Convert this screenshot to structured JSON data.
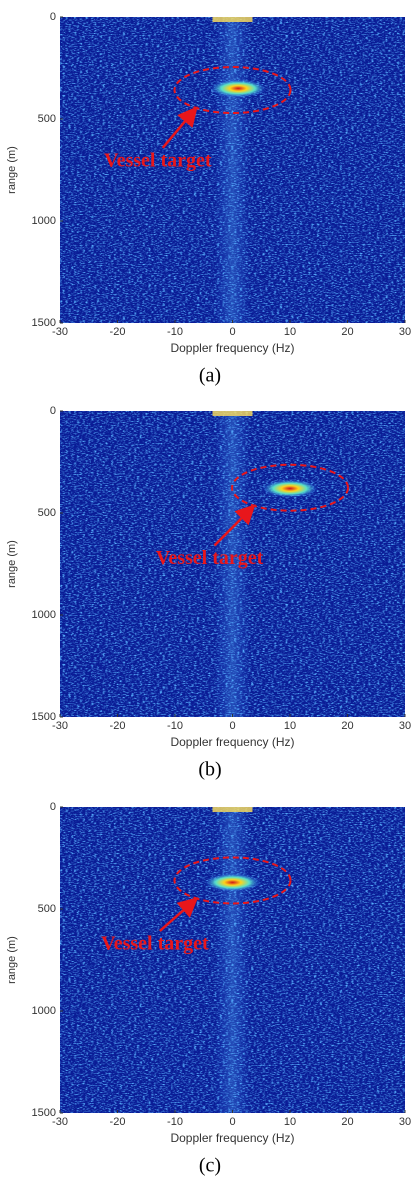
{
  "chart_data": [
    {
      "type": "heatmap",
      "caption": "(a)",
      "xlabel": "Doppler frequency (Hz)",
      "ylabel": "range (m)",
      "xlim": [
        -30,
        30
      ],
      "ylim": [
        0,
        1500
      ],
      "xticks": [
        -30,
        -20,
        -10,
        0,
        10,
        20,
        30
      ],
      "yticks": [
        0,
        500,
        1000,
        1500
      ],
      "target": {
        "x": 1,
        "y": 350
      },
      "annotation": {
        "text": "Vessel target",
        "x": -13,
        "y": 710,
        "ellipse_x": 0,
        "ellipse_y": 358
      }
    },
    {
      "type": "heatmap",
      "caption": "(b)",
      "xlabel": "Doppler frequency (Hz)",
      "ylabel": "range (m)",
      "xlim": [
        -30,
        30
      ],
      "ylim": [
        0,
        1500
      ],
      "xticks": [
        -30,
        -20,
        -10,
        0,
        10,
        20,
        30
      ],
      "yticks": [
        0,
        500,
        1000,
        1500
      ],
      "target": {
        "x": 10,
        "y": 380
      },
      "annotation": {
        "text": "Vessel target",
        "x": -4,
        "y": 728,
        "ellipse_x": 10,
        "ellipse_y": 376
      }
    },
    {
      "type": "heatmap",
      "caption": "(c)",
      "xlabel": "Doppler frequency (Hz)",
      "ylabel": "range (m)",
      "xlim": [
        -30,
        30
      ],
      "ylim": [
        0,
        1500
      ],
      "xticks": [
        -30,
        -20,
        -10,
        0,
        10,
        20,
        30
      ],
      "yticks": [
        0,
        500,
        1000,
        1500
      ],
      "target": {
        "x": 0,
        "y": 370
      },
      "annotation": {
        "text": "Vessel target",
        "x": -13.5,
        "y": 676,
        "ellipse_x": 0,
        "ellipse_y": 360
      }
    }
  ]
}
